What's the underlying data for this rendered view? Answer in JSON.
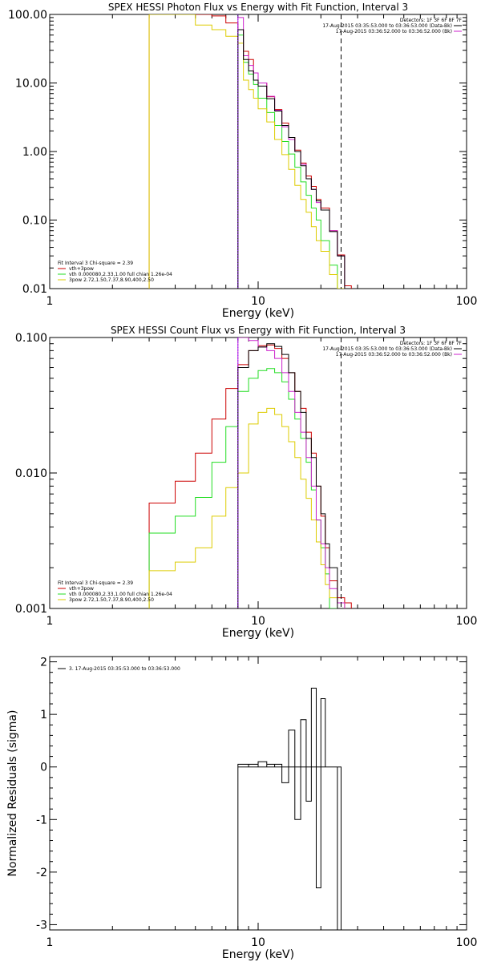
{
  "colors": {
    "data": "#000000",
    "total": "#cc0000",
    "vth": "#22dd22",
    "bpow": "#ddcc00",
    "bk": "#cc22cc",
    "vline": "#7f00ff"
  },
  "chart_data": [
    {
      "type": "line",
      "title": "SPEX HESSI Photon Flux vs Energy with Fit Function, Interval 3",
      "xlabel": "Energy (keV)",
      "ylabel": "",
      "xscale": "log",
      "yscale": "log",
      "xlim": [
        1,
        100
      ],
      "ylim": [
        0.01,
        100
      ],
      "xticks": [
        {
          "v": 1,
          "label": "1"
        },
        {
          "v": 10,
          "label": "10"
        },
        {
          "v": 100,
          "label": "100"
        }
      ],
      "yticks": [
        {
          "v": 0.01,
          "label": "0.01"
        },
        {
          "v": 0.1,
          "label": "0.10"
        },
        {
          "v": 1,
          "label": "1.00"
        },
        {
          "v": 10,
          "label": "10.00"
        },
        {
          "v": 100,
          "label": "100.00"
        }
      ],
      "top_legend": [
        {
          "text": "Detectors: 1F 3F 6F 8F 7F",
          "color": "",
          "line": false
        },
        {
          "text": "17-Aug-2015 03:35:53.000 to 03:36:53.000 (Data-Bk)",
          "color": "#000000",
          "line": true
        },
        {
          "text": "17-Aug-2015 03:36:52.000 to 03:36:52.000 (Bk)",
          "color": "#cc22cc",
          "line": true
        }
      ],
      "bottom_legend": [
        {
          "text": "Fit Interval 3   Chi-square = 2.39",
          "color": "",
          "line": false
        },
        {
          "text": "vth+3pow",
          "color": "#cc0000",
          "line": true
        },
        {
          "text": "vth 0.000080,2.33,1.00   full chian 1.26e-04",
          "color": "#22dd22",
          "line": true
        },
        {
          "text": "3pow 2.72,1.50,7.37,8.90,400,2.50",
          "color": "#ddcc00",
          "line": true
        }
      ],
      "vlines": [
        {
          "x": 8,
          "color": "#7f00ff",
          "dash": "1,1"
        },
        {
          "x": 25,
          "color": "#000000",
          "dash": "6,4"
        }
      ],
      "edges": [
        3,
        4,
        5,
        6,
        7,
        8,
        8.5,
        9,
        9.5,
        10,
        11,
        12,
        13,
        14,
        15,
        16,
        17,
        18,
        19,
        20,
        22,
        24,
        26,
        28
      ],
      "series": [
        {
          "name": "vth+3pow",
          "color": "#cc0000",
          "start": 0,
          "values": [
            110,
            110,
            110,
            95,
            75,
            60,
            29,
            22,
            14,
            10,
            6.3,
            4.1,
            2.6,
            1.6,
            1.05,
            0.68,
            0.44,
            0.31,
            0.2,
            0.15,
            0.07,
            0.031,
            0.011
          ]
        },
        {
          "name": "vth",
          "color": "#22dd22",
          "start": 5,
          "values": [
            50,
            20,
            13.5,
            9.5,
            6,
            3.7,
            2.4,
            1.4,
            0.92,
            0.59,
            0.36,
            0.23,
            0.15,
            0.1,
            0.05,
            0.022,
            0.007
          ]
        },
        {
          "name": "3pow",
          "color": "#ddcc00",
          "start": 0,
          "values": [
            100,
            100,
            70,
            60,
            48,
            38,
            11,
            8,
            6,
            4.2,
            2.7,
            1.5,
            0.9,
            0.55,
            0.32,
            0.2,
            0.13,
            0.08,
            0.05,
            0.035,
            0.016,
            0.009
          ]
        },
        {
          "name": "Bk",
          "color": "#cc22cc",
          "start": 5,
          "values": [
            90,
            25,
            18,
            14,
            10,
            6.4,
            4,
            2.3,
            1.5,
            1,
            0.65,
            0.4,
            0.28,
            0.18,
            0.14,
            0.07,
            0.03
          ]
        },
        {
          "name": "Data-Bk",
          "color": "#000000",
          "start": 5,
          "values": [
            60,
            22,
            15,
            11,
            9,
            5.9,
            3.9,
            2.4,
            1.6,
            1,
            0.62,
            0.4,
            0.28,
            0.19,
            0.14,
            0.068,
            0.03
          ]
        }
      ]
    },
    {
      "type": "line",
      "title": "SPEX HESSI Count Flux vs Energy with Fit Function, Interval 3",
      "xlabel": "Energy (keV)",
      "ylabel": "",
      "xscale": "log",
      "yscale": "log",
      "xlim": [
        1,
        100
      ],
      "ylim": [
        0.001,
        0.1
      ],
      "xticks": [
        {
          "v": 1,
          "label": "1"
        },
        {
          "v": 10,
          "label": "10"
        },
        {
          "v": 100,
          "label": "100"
        }
      ],
      "yticks": [
        {
          "v": 0.001,
          "label": "0.001"
        },
        {
          "v": 0.01,
          "label": "0.010"
        },
        {
          "v": 0.1,
          "label": "0.100"
        }
      ],
      "top_legend": [
        {
          "text": "Detectors: 1F 3F 6F 8F 7F",
          "color": "",
          "line": false
        },
        {
          "text": "17-Aug-2015 03:35:53.000 to 03:36:53.000 (Data-Bk)",
          "color": "#000000",
          "line": true
        },
        {
          "text": "17-Aug-2015 03:36:52.000 to 03:36:52.000 (Bk)",
          "color": "#cc22cc",
          "line": true
        }
      ],
      "bottom_legend": [
        {
          "text": "Fit Interval 3   Chi-square = 2.39",
          "color": "",
          "line": false
        },
        {
          "text": "vth+3pow",
          "color": "#cc0000",
          "line": true
        },
        {
          "text": "vth 0.000080,2.33,1.00   full chian 1.26e-04",
          "color": "#22dd22",
          "line": true
        },
        {
          "text": "3pow 2.72,1.50,7.37,8.90,400,2.50",
          "color": "#ddcc00",
          "line": true
        }
      ],
      "vlines": [
        {
          "x": 8,
          "color": "#7f00ff",
          "dash": "1,1"
        },
        {
          "x": 25,
          "color": "#000000",
          "dash": "6,4"
        }
      ],
      "edges": [
        3,
        4,
        5,
        6,
        7,
        8,
        9,
        10,
        11,
        12,
        13,
        14,
        15,
        16,
        17,
        18,
        19,
        20,
        21,
        22,
        24,
        26,
        28
      ],
      "series": [
        {
          "name": "vth+3pow",
          "color": "#cc0000",
          "start": 0,
          "values": [
            0.006,
            0.0087,
            0.014,
            0.025,
            0.042,
            0.063,
            0.08,
            0.087,
            0.088,
            0.083,
            0.07,
            0.055,
            0.04,
            0.03,
            0.02,
            0.014,
            0.008,
            0.0048,
            0.0028,
            0.0016,
            0.0012,
            0.0011
          ]
        },
        {
          "name": "vth",
          "color": "#22dd22",
          "start": 0,
          "values": [
            0.0036,
            0.0048,
            0.0066,
            0.012,
            0.022,
            0.04,
            0.05,
            0.057,
            0.059,
            0.055,
            0.047,
            0.035,
            0.025,
            0.018,
            0.012,
            0.0075,
            0.0045,
            0.0028,
            0.0018,
            0.001
          ]
        },
        {
          "name": "3pow",
          "color": "#ddcc00",
          "start": 0,
          "values": [
            0.0019,
            0.0022,
            0.0028,
            0.0048,
            0.0078,
            0.01,
            0.023,
            0.028,
            0.03,
            0.027,
            0.022,
            0.017,
            0.013,
            0.009,
            0.0065,
            0.0045,
            0.0031,
            0.0021,
            0.0015,
            0.0012,
            0.0011
          ]
        },
        {
          "name": "Bk",
          "color": "#cc22cc",
          "start": 5,
          "values": [
            0.1,
            0.095,
            0.085,
            0.08,
            0.07,
            0.055,
            0.04,
            0.028,
            0.02,
            0.013,
            0.008,
            0.0045,
            0.003,
            0.002,
            0.0014,
            0.0011
          ]
        },
        {
          "name": "Data-Bk",
          "color": "#000000",
          "start": 5,
          "values": [
            0.06,
            0.08,
            0.085,
            0.09,
            0.086,
            0.075,
            0.055,
            0.04,
            0.028,
            0.018,
            0.013,
            0.008,
            0.005,
            0.003,
            0.002
          ]
        }
      ]
    },
    {
      "type": "line",
      "title": "",
      "xlabel": "Energy (keV)",
      "ylabel": "Normalized Residuals (sigma)",
      "xscale": "log",
      "yscale": "linear",
      "xlim": [
        1,
        100
      ],
      "ylim": [
        -3.1,
        2.1
      ],
      "xticks": [
        {
          "v": 1,
          "label": "1"
        },
        {
          "v": 10,
          "label": "10"
        },
        {
          "v": 100,
          "label": "100"
        }
      ],
      "yticks": [
        {
          "v": -3,
          "label": "-3"
        },
        {
          "v": -2,
          "label": "-2"
        },
        {
          "v": -1,
          "label": "-1"
        },
        {
          "v": 0,
          "label": "0"
        },
        {
          "v": 1,
          "label": "1"
        },
        {
          "v": 2,
          "label": "2"
        }
      ],
      "top_legend": [
        {
          "text": "3. 17-Aug-2015 03:35:53.000 to 03:36:53.000",
          "color": "#000000",
          "line": true
        }
      ],
      "bottom_legend": [],
      "vlines": [],
      "edges": [
        8,
        9,
        10,
        11,
        12,
        13,
        14,
        15,
        16,
        17,
        18,
        19,
        20,
        21,
        22,
        24,
        25
      ],
      "series": [
        {
          "name": "",
          "color": "#000000",
          "start": 0,
          "residual": true,
          "values": [
            0.05,
            0.05,
            0.1,
            0.05,
            0.05,
            -0.3,
            0.7,
            -1.0,
            0.9,
            -0.65,
            1.5,
            -2.3,
            1.3,
            0.0,
            0.0,
            -3.1
          ]
        }
      ]
    }
  ]
}
